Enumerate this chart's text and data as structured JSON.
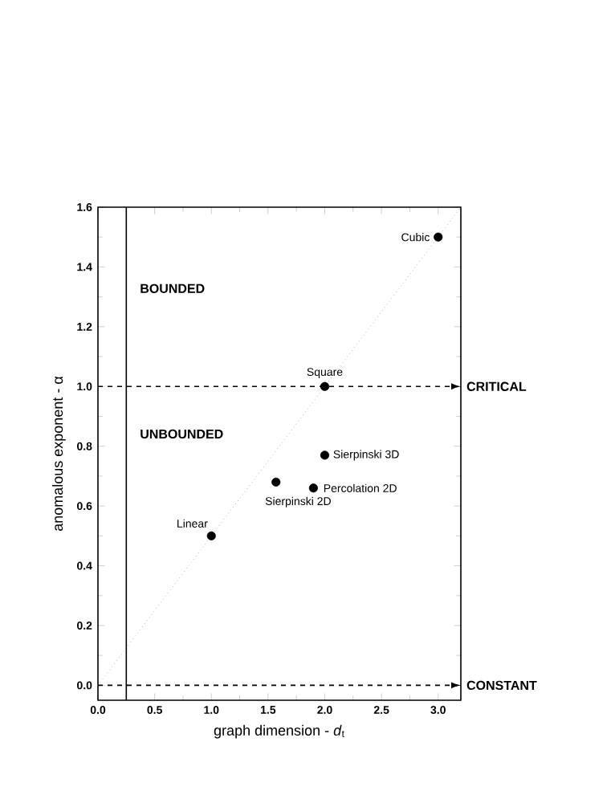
{
  "chart_data": {
    "type": "scatter",
    "xlabel": "graph dimension - *d*$_{t}$",
    "ylabel": "anomalous exponent - α",
    "xlim": [
      0,
      3.2
    ],
    "ylim": [
      -0.05,
      1.6
    ],
    "xticks": [
      {
        "value": 0,
        "label": "0.0"
      },
      {
        "value": 0.5,
        "label": "0.5"
      },
      {
        "value": 1,
        "label": "1.0"
      },
      {
        "value": 1.5,
        "label": "1.5"
      },
      {
        "value": 2,
        "label": "2.0"
      },
      {
        "value": 2.5,
        "label": "2.5"
      },
      {
        "value": 3,
        "label": "3.0"
      }
    ],
    "yticks": [
      {
        "value": 0,
        "label": "0.0"
      },
      {
        "value": 0.2,
        "label": "0.2"
      },
      {
        "value": 0.4,
        "label": "0.4"
      },
      {
        "value": 0.6,
        "label": "0.6"
      },
      {
        "value": 0.8,
        "label": "0.8"
      },
      {
        "value": 1,
        "label": "1.0"
      },
      {
        "value": 1.2,
        "label": "1.2"
      },
      {
        "value": 1.4,
        "label": "1.4"
      },
      {
        "value": 1.6,
        "label": "1.6"
      }
    ],
    "series": [
      {
        "type": "line",
        "color": "#888888",
        "line_style": "dotted",
        "marker": "none",
        "x": [
          0,
          3.2
        ],
        "values": [
          0,
          1.6
        ]
      },
      {
        "type": "scatter",
        "color": "#000000",
        "marker": "circle",
        "x": [
          1.0,
          1.57,
          1.9,
          2.0,
          2.0,
          3.0
        ],
        "values": [
          0.5,
          0.68,
          0.66,
          0.77,
          1.0,
          1.5
        ]
      }
    ],
    "ref_lines": [
      {
        "axis": "y",
        "value": 1.0,
        "label": "CRITICAL",
        "line_style": "dashed",
        "color": "#000000"
      },
      {
        "axis": "y",
        "value": 0.0,
        "label": "CONSTANT",
        "line_style": "dashed",
        "color": "#000000"
      },
      {
        "axis": "x",
        "value": 0.25,
        "line_style": "solid",
        "color": "#000000"
      }
    ],
    "annotations": [
      {
        "text": "Linear",
        "x": 1.0,
        "y": 0.5
      },
      {
        "text": "Sierpinski 2D",
        "x": 1.57,
        "y": 0.68
      },
      {
        "text": "Percolation 2D",
        "x": 1.9,
        "y": 0.66
      },
      {
        "text": "Sierpinski 3D",
        "x": 2.0,
        "y": 0.77
      },
      {
        "text": "Square",
        "x": 2.0,
        "y": 1.0
      },
      {
        "text": "Cubic",
        "x": 3.0,
        "y": 1.5
      },
      "BOUNDED",
      "UNBOUNDED"
    ],
    "grid": false
  }
}
